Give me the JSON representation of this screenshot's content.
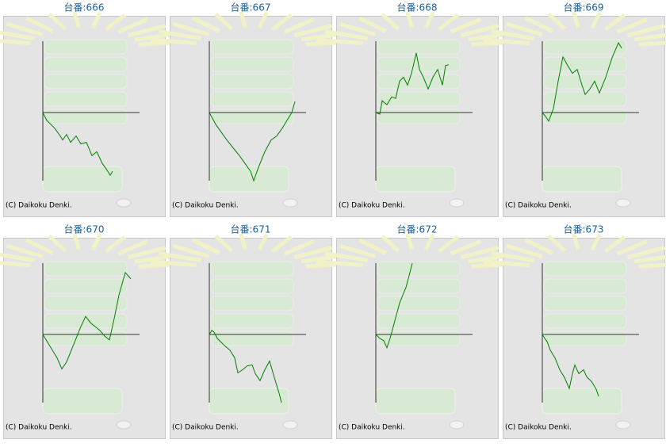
{
  "copyright": "(C) Daikoku Denki.",
  "xlim": [
    0,
    122
  ],
  "ylim": [
    -87,
    91
  ],
  "line_color": "#008000",
  "panels": [
    {
      "title": "台番:666",
      "x": [
        0,
        5,
        10,
        15,
        22,
        25,
        30,
        35,
        42,
        48,
        55,
        62,
        68,
        75,
        80,
        85,
        88
      ],
      "y": [
        0,
        -10,
        -15,
        -20,
        -30,
        -35,
        -28,
        -38,
        -30,
        -40,
        -38,
        -55,
        -50,
        -65,
        -72,
        -80,
        -75
      ]
    },
    {
      "title": "台番:667",
      "x": [
        0,
        8,
        15,
        22,
        30,
        38,
        45,
        52,
        56,
        62,
        70,
        78,
        85,
        92,
        98,
        104,
        108
      ],
      "y": [
        0,
        -15,
        -25,
        -35,
        -45,
        -55,
        -65,
        -75,
        -87,
        -70,
        -50,
        -35,
        -30,
        -20,
        -10,
        0,
        14
      ]
    },
    {
      "title": "台番:668",
      "x": [
        0,
        5,
        8,
        14,
        20,
        25,
        30,
        35,
        40,
        45,
        51,
        55,
        60,
        66,
        72,
        78,
        84,
        88,
        92
      ],
      "y": [
        0,
        -2,
        15,
        10,
        20,
        18,
        40,
        45,
        35,
        50,
        76,
        55,
        45,
        30,
        45,
        55,
        35,
        60,
        61
      ]
    },
    {
      "title": "台番:669",
      "x": [
        0,
        4,
        8,
        14,
        20,
        26,
        32,
        38,
        44,
        50,
        54,
        60,
        66,
        72,
        80,
        88,
        96,
        100
      ],
      "y": [
        0,
        -5,
        -11,
        5,
        40,
        71,
        60,
        50,
        55,
        35,
        23,
        30,
        40,
        25,
        45,
        70,
        89,
        82
      ]
    },
    {
      "title": "台番:670",
      "x": [
        0,
        6,
        12,
        18,
        24,
        30,
        36,
        42,
        48,
        54,
        60,
        66,
        72,
        78,
        84,
        90,
        96,
        104,
        111
      ],
      "y": [
        0,
        -10,
        -20,
        -30,
        -44,
        -35,
        -20,
        -5,
        10,
        23,
        15,
        10,
        5,
        -2,
        -7,
        20,
        50,
        79,
        71
      ]
    },
    {
      "title": "台番:671",
      "x": [
        0,
        3,
        6,
        10,
        15,
        20,
        26,
        32,
        36,
        42,
        48,
        54,
        58,
        64,
        70,
        76,
        82,
        88,
        91
      ],
      "y": [
        0,
        5,
        3,
        -5,
        -10,
        -15,
        -20,
        -30,
        -49,
        -45,
        -40,
        -39,
        -50,
        -59,
        -45,
        -34,
        -55,
        -75,
        -87
      ]
    },
    {
      "title": "台番:672",
      "x": [
        0,
        5,
        10,
        14,
        18,
        22,
        26,
        30,
        34,
        38,
        42,
        46
      ],
      "y": [
        0,
        -5,
        -8,
        -17,
        -5,
        10,
        25,
        40,
        50,
        60,
        75,
        91
      ]
    },
    {
      "title": "台番:673",
      "x": [
        0,
        3,
        6,
        10,
        16,
        22,
        28,
        34,
        38,
        41,
        46,
        52,
        56,
        62,
        68,
        71
      ],
      "y": [
        0,
        -5,
        -9,
        -20,
        -30,
        -45,
        -55,
        -69,
        -50,
        -39,
        -50,
        -45,
        -54,
        -60,
        -70,
        -79
      ]
    }
  ]
}
